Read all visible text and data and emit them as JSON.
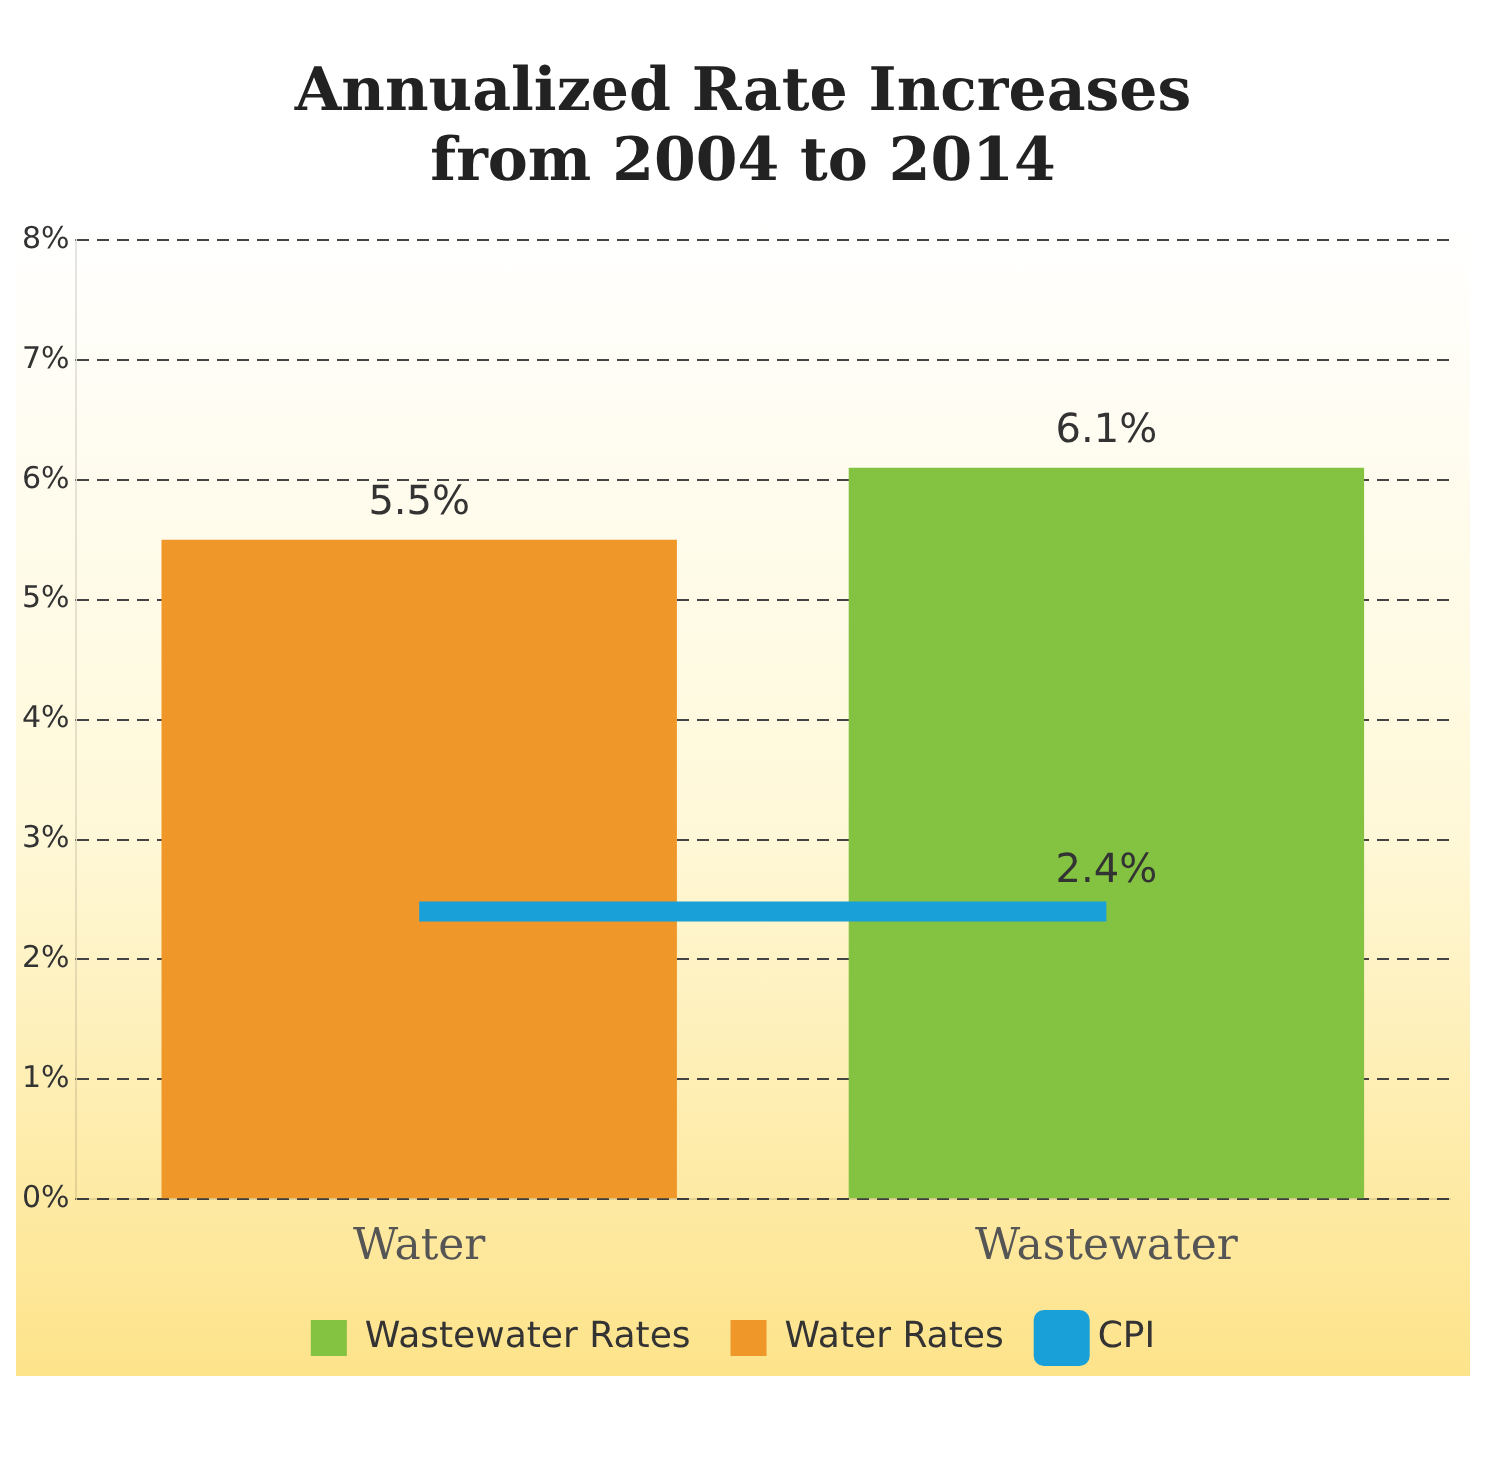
{
  "chart_data": {
    "type": "bar",
    "title": "Annualized Rate Increases from 2004 to 2014",
    "categories": [
      "Water",
      "Wastewater"
    ],
    "series": [
      {
        "name": "Wastewater Rates",
        "color": "#84c341",
        "values": [
          null,
          6.1
        ],
        "value_labels": [
          null,
          "6.1%"
        ]
      },
      {
        "name": "Water Rates",
        "color": "#f0972a",
        "values": [
          5.5,
          null
        ],
        "value_labels": [
          "5.5%",
          null
        ]
      },
      {
        "name": "CPI",
        "type": "line",
        "color": "#1aa0d8",
        "values": [
          2.4,
          2.4
        ],
        "value_labels": [
          null,
          "2.4%"
        ]
      }
    ],
    "ylim": [
      0,
      8
    ],
    "yticks": [
      {
        "value": 0,
        "label": "0%"
      },
      {
        "value": 1,
        "label": "1%"
      },
      {
        "value": 2,
        "label": "2%"
      },
      {
        "value": 3,
        "label": "3%"
      },
      {
        "value": 4,
        "label": "4%"
      },
      {
        "value": 5,
        "label": "5%"
      },
      {
        "value": 6,
        "label": "6%"
      },
      {
        "value": 7,
        "label": "7%"
      },
      {
        "value": 8,
        "label": "8%"
      }
    ],
    "grid": "y",
    "legend": "bottom"
  }
}
